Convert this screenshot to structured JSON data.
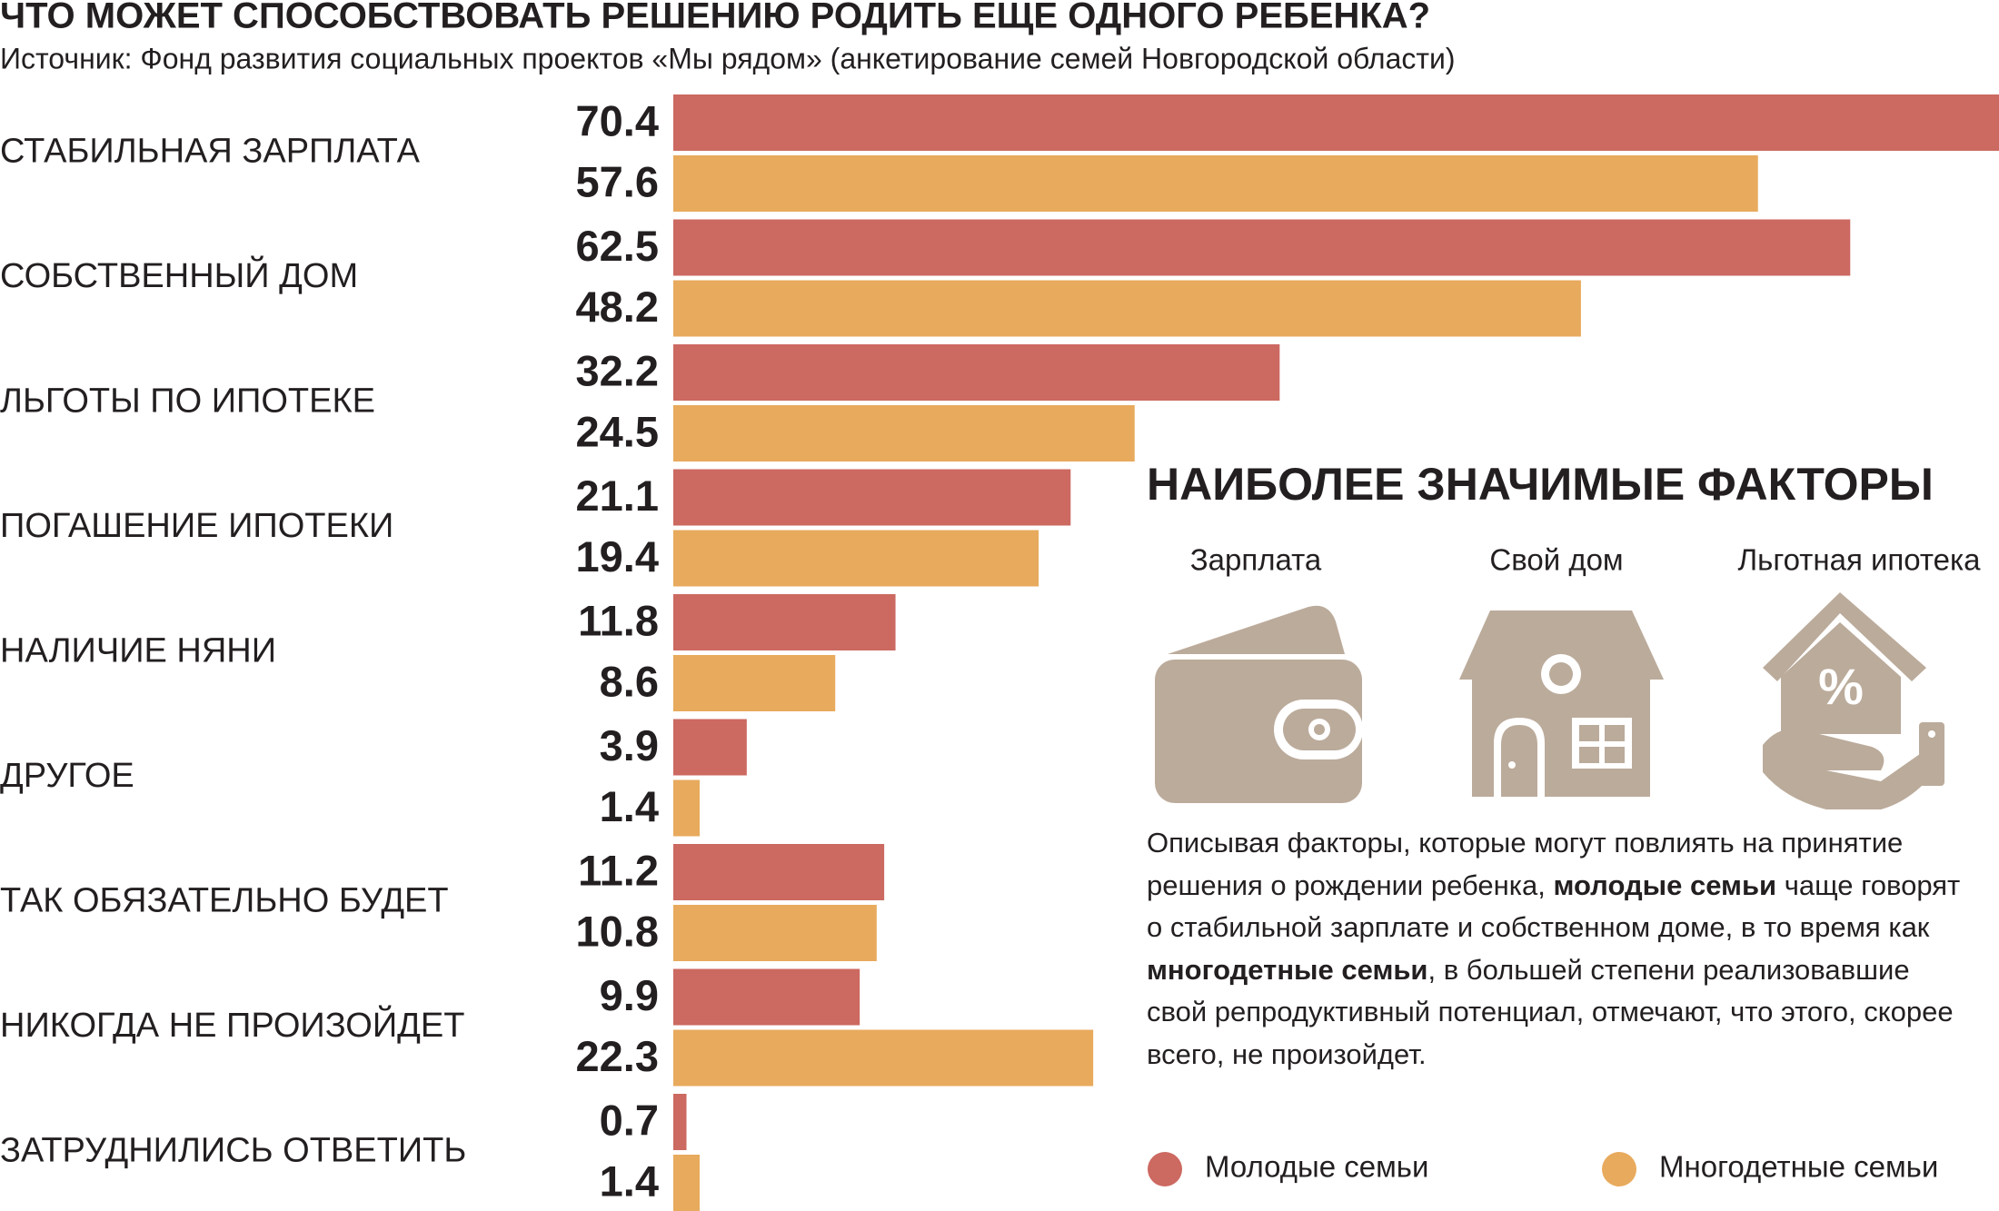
{
  "chart_data": {
    "type": "bar",
    "orientation": "horizontal",
    "title": "ЧТО МОЖЕТ СПОСОБСТВОВАТЬ РЕШЕНИЮ РОДИТЬ ЕЩЕ ОДНОГО РЕБЕНКА?",
    "subtitle": "Источник: Фонд развития  социальных проектов «Мы рядом» (анкетирование семей Новгородской области)",
    "categories": [
      "СТАБИЛЬНАЯ ЗАРПЛАТА",
      "СОБСТВЕННЫЙ ДОМ",
      "ЛЬГОТЫ ПО ИПОТЕКЕ",
      "ПОГАШЕНИЕ ИПОТЕКИ",
      "НАЛИЧИЕ НЯНИ",
      "ДРУГОЕ",
      "ТАК ОБЯЗАТЕЛЬНО БУДЕТ",
      "НИКОГДА НЕ ПРОИЗОЙДЕТ",
      "ЗАТРУДНИЛИСЬ ОТВЕТИТЬ"
    ],
    "series": [
      {
        "name": "Молодые семьи",
        "color": "#cc6961",
        "values": [
          70.4,
          62.5,
          32.2,
          21.1,
          11.8,
          3.9,
          11.2,
          9.9,
          0.7
        ]
      },
      {
        "name": "Многодетные семьи",
        "color": "#e8aa5d",
        "values": [
          57.6,
          48.2,
          24.5,
          19.4,
          8.6,
          1.4,
          10.8,
          22.3,
          1.4
        ]
      }
    ],
    "panel_title": "НАИБОЛЕЕ ЗНАЧИМЫЕ ФАКТОРЫ",
    "icon_labels": [
      "Зарплата",
      "Свой дом",
      "Льготная ипотека"
    ],
    "icon_color": "#bbab9b",
    "note": [
      {
        "text": "Описывая факторы, которые могут повлиять на принятие решения о рождении ребенка, ",
        "bold": false
      },
      {
        "text": "молодые семьи",
        "bold": true
      },
      {
        "text": " чаще говорят о стабильной зарплате и собственном доме, в то время как ",
        "bold": false
      },
      {
        "text": "многодетные семьи",
        "bold": true
      },
      {
        "text": ", в большей степени реализовавшие свой репродуктивный потенциал, отмечают, что этого, скорее всего, не произойдет.",
        "bold": false
      }
    ]
  }
}
